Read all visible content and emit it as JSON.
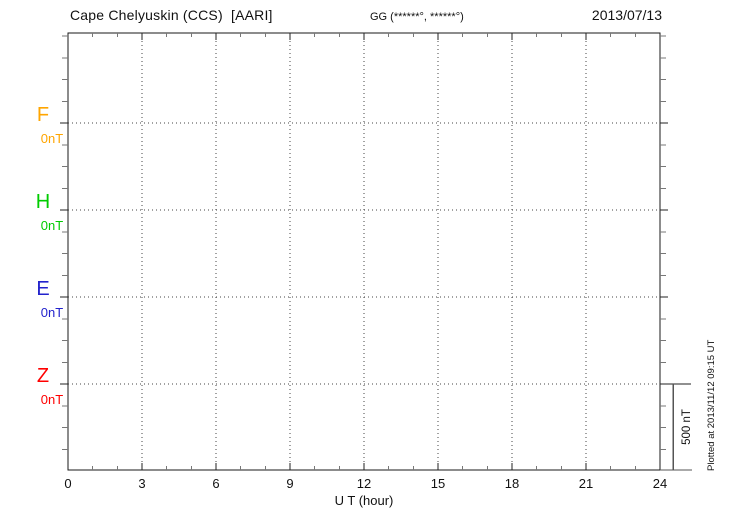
{
  "header": {
    "station_title": "Cape Chelyuskin (CCS)  [AARI]",
    "gg_coords": "GG (******°, ******°)",
    "date": "2013/07/13"
  },
  "axes": {
    "x_label": "U T (hour)",
    "x_ticks": [
      "0",
      "3",
      "6",
      "9",
      "12",
      "15",
      "18",
      "21",
      "24"
    ]
  },
  "components": [
    {
      "name": "F",
      "unit_label": "0nT",
      "color": "#FFA500"
    },
    {
      "name": "H",
      "unit_label": "0nT",
      "color": "#00CC00"
    },
    {
      "name": "E",
      "unit_label": "0nT",
      "color": "#2222CC"
    },
    {
      "name": "Z",
      "unit_label": "0nT",
      "color": "#FF0000"
    }
  ],
  "scale_bar": {
    "label": "500 nT"
  },
  "footer_note": "Plotted at 2013/11/12 09:15 UT",
  "chart_data": {
    "type": "line",
    "title": "Cape Chelyuskin (CCS)  [AARI]",
    "subtitle": "GG (******°, ******°)",
    "date": "2013/07/13",
    "xlabel": "U T (hour)",
    "x_range": [
      0,
      24
    ],
    "x_major_ticks": [
      0,
      3,
      6,
      9,
      12,
      15,
      18,
      21,
      24
    ],
    "x_minor_tick_step_hours": 1,
    "grid": "dotted vertical gridlines at 3-hour intervals; dotted horizontal zero-baseline per component",
    "legend_position": "left margin (stacked component labels)",
    "y_scale_bar": {
      "label": "500 nT",
      "equals_one_baseline_division": true
    },
    "series": [
      {
        "name": "F",
        "baseline_value_label": "0nT",
        "color": "#FFA500",
        "values": []
      },
      {
        "name": "H",
        "baseline_value_label": "0nT",
        "color": "#00CC00",
        "values": []
      },
      {
        "name": "E",
        "baseline_value_label": "0nT",
        "color": "#2222CC",
        "values": []
      },
      {
        "name": "Z",
        "baseline_value_label": "0nT",
        "color": "#FF0000",
        "values": []
      }
    ],
    "annotations": [
      "Plotted at 2013/11/12 09:15 UT"
    ]
  }
}
